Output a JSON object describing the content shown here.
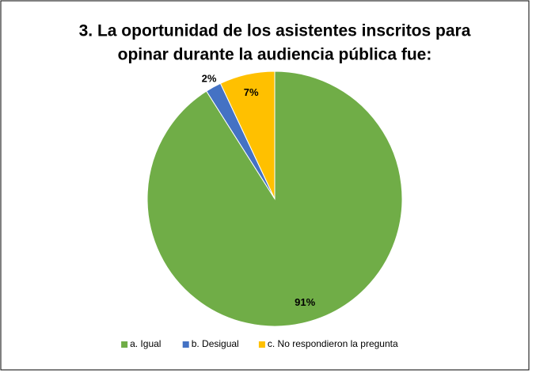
{
  "chart_data": {
    "type": "pie",
    "title": [
      "3. La oportunidad de los asistentes inscritos para",
      "opinar durante la audiencia pública fue:"
    ],
    "categories": [
      "a. Igual",
      "b. Desigual",
      "c. No respondieron la pregunta"
    ],
    "values": [
      91,
      2,
      7
    ],
    "value_labels": [
      "91%",
      "2%",
      "7%"
    ],
    "colors": [
      "#70ad47",
      "#4472c4",
      "#ffc000"
    ],
    "legend": "bottom"
  }
}
